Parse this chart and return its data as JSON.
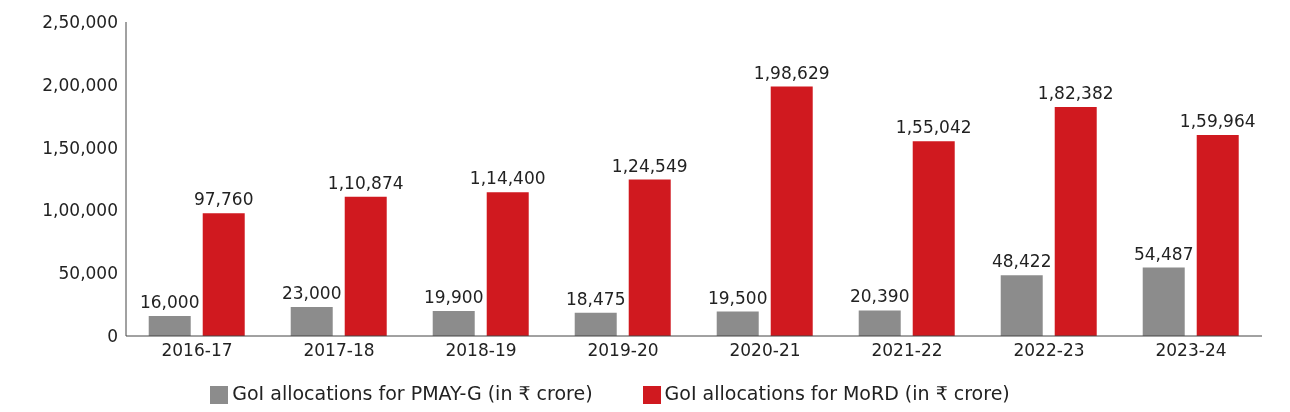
{
  "chart_data": {
    "type": "bar",
    "categories": [
      "2016-17",
      "2017-18",
      "2018-19",
      "2019-20",
      "2020-21",
      "2021-22",
      "2022-23",
      "2023-24"
    ],
    "series": [
      {
        "name": "GoI allocations for PMAY-G (in ₹ crore)",
        "color": "#8c8c8c",
        "values": [
          16000,
          23000,
          19900,
          18475,
          19500,
          20390,
          48422,
          54487
        ],
        "value_labels": [
          "16,000",
          "23,000",
          "19,900",
          "18,475",
          "19,500",
          "20,390",
          "48,422",
          "54,487"
        ]
      },
      {
        "name": "GoI allocations for MoRD (in ₹ crore)",
        "color": "#d0191f",
        "values": [
          97760,
          110874,
          114400,
          124549,
          198629,
          155042,
          182382,
          159964
        ],
        "value_labels": [
          "97,760",
          "1,10,874",
          "1,14,400",
          "1,24,549",
          "1,98,629",
          "1,55,042",
          "1,82,382",
          "1,59,964"
        ]
      }
    ],
    "ylim": [
      0,
      250000
    ],
    "yticks": [
      0,
      {
        "value": 50000,
        "label": "50,000"
      },
      {
        "value": 100000,
        "label": "1,00,000"
      },
      {
        "value": 150000,
        "label": "1,50,000"
      },
      {
        "value": 200000,
        "label": "2,00,000"
      },
      {
        "value": 250000,
        "label": "2,50,000"
      }
    ],
    "grid": false,
    "legend": "bottom"
  }
}
